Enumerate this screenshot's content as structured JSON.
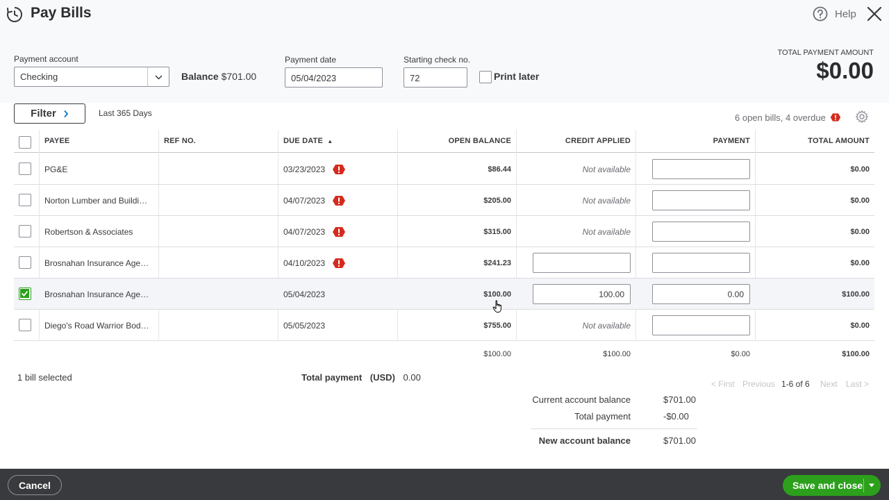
{
  "header": {
    "title": "Pay Bills",
    "help_label": "Help",
    "icons": {
      "title": "clock-refresh-icon",
      "help": "question-circle-icon",
      "close": "close-icon"
    }
  },
  "form": {
    "payment_account_label": "Payment account",
    "payment_account_value": "Checking",
    "balance_label": "Balance",
    "balance_value": "$701.00",
    "payment_date_label": "Payment date",
    "payment_date_value": "05/04/2023",
    "starting_check_label": "Starting check no.",
    "starting_check_value": "72",
    "print_later_label": "Print later",
    "print_later_checked": false,
    "total_payment_amount_label": "TOTAL PAYMENT AMOUNT",
    "total_payment_amount_value": "$0.00"
  },
  "toolbar": {
    "filter_label": "Filter",
    "range_label": "Last 365 Days",
    "open_bills_summary": "6 open bills, 4 overdue"
  },
  "table": {
    "columns": [
      "PAYEE",
      "REF NO.",
      "DUE DATE",
      "OPEN BALANCE",
      "CREDIT APPLIED",
      "PAYMENT",
      "TOTAL AMOUNT"
    ],
    "sort_indicator": "▲",
    "rows": [
      {
        "payee": "PG&E",
        "ref": "",
        "due": "03/23/2023",
        "overdue": true,
        "open_balance": "$86.44",
        "credit": "Not available",
        "credit_is_input": false,
        "credit_value": "",
        "payment": "",
        "total": "$0.00",
        "checked": false
      },
      {
        "payee": "Norton Lumber and Buildi…",
        "ref": "",
        "due": "04/07/2023",
        "overdue": true,
        "open_balance": "$205.00",
        "credit": "Not available",
        "credit_is_input": false,
        "credit_value": "",
        "payment": "",
        "total": "$0.00",
        "checked": false
      },
      {
        "payee": "Robertson & Associates",
        "ref": "",
        "due": "04/07/2023",
        "overdue": true,
        "open_balance": "$315.00",
        "credit": "Not available",
        "credit_is_input": false,
        "credit_value": "",
        "payment": "",
        "total": "$0.00",
        "checked": false
      },
      {
        "payee": "Brosnahan Insurance Age…",
        "ref": "",
        "due": "04/10/2023",
        "overdue": true,
        "open_balance": "$241.23",
        "credit": "",
        "credit_is_input": true,
        "credit_value": "",
        "payment": "",
        "total": "$0.00",
        "checked": false
      },
      {
        "payee": "Brosnahan Insurance Age…",
        "ref": "",
        "due": "05/04/2023",
        "overdue": false,
        "open_balance": "$100.00",
        "credit": "",
        "credit_is_input": true,
        "credit_value": "100.00",
        "payment": "0.00",
        "total": "$100.00",
        "checked": true
      },
      {
        "payee": "Diego's Road Warrior Bod…",
        "ref": "",
        "due": "05/05/2023",
        "overdue": false,
        "open_balance": "$755.00",
        "credit": "Not available",
        "credit_is_input": false,
        "credit_value": "",
        "payment": "",
        "total": "$0.00",
        "checked": false
      }
    ],
    "totals": {
      "open_balance": "$100.00",
      "credit": "$100.00",
      "payment": "$0.00",
      "total": "$100.00"
    }
  },
  "footer_info": {
    "bill_selected": "1 bill selected",
    "total_payment_label": "Total payment",
    "total_payment_currency": "(USD)",
    "total_payment_value": "0.00"
  },
  "pager": {
    "first": "< First",
    "previous": "Previous",
    "range": "1-6 of 6",
    "next": "Next",
    "last": "Last >"
  },
  "summary": {
    "current_balance_label": "Current account balance",
    "current_balance_value": "$701.00",
    "total_payment_label": "Total payment",
    "total_payment_value": "-$0.00",
    "new_balance_label": "New account balance",
    "new_balance_value": "$701.00"
  },
  "actions": {
    "cancel_label": "Cancel",
    "save_label": "Save and close"
  },
  "colors": {
    "brand_green": "#2ca01c",
    "overdue_red": "#d52b1e",
    "bottom_bar": "#393a3d"
  }
}
